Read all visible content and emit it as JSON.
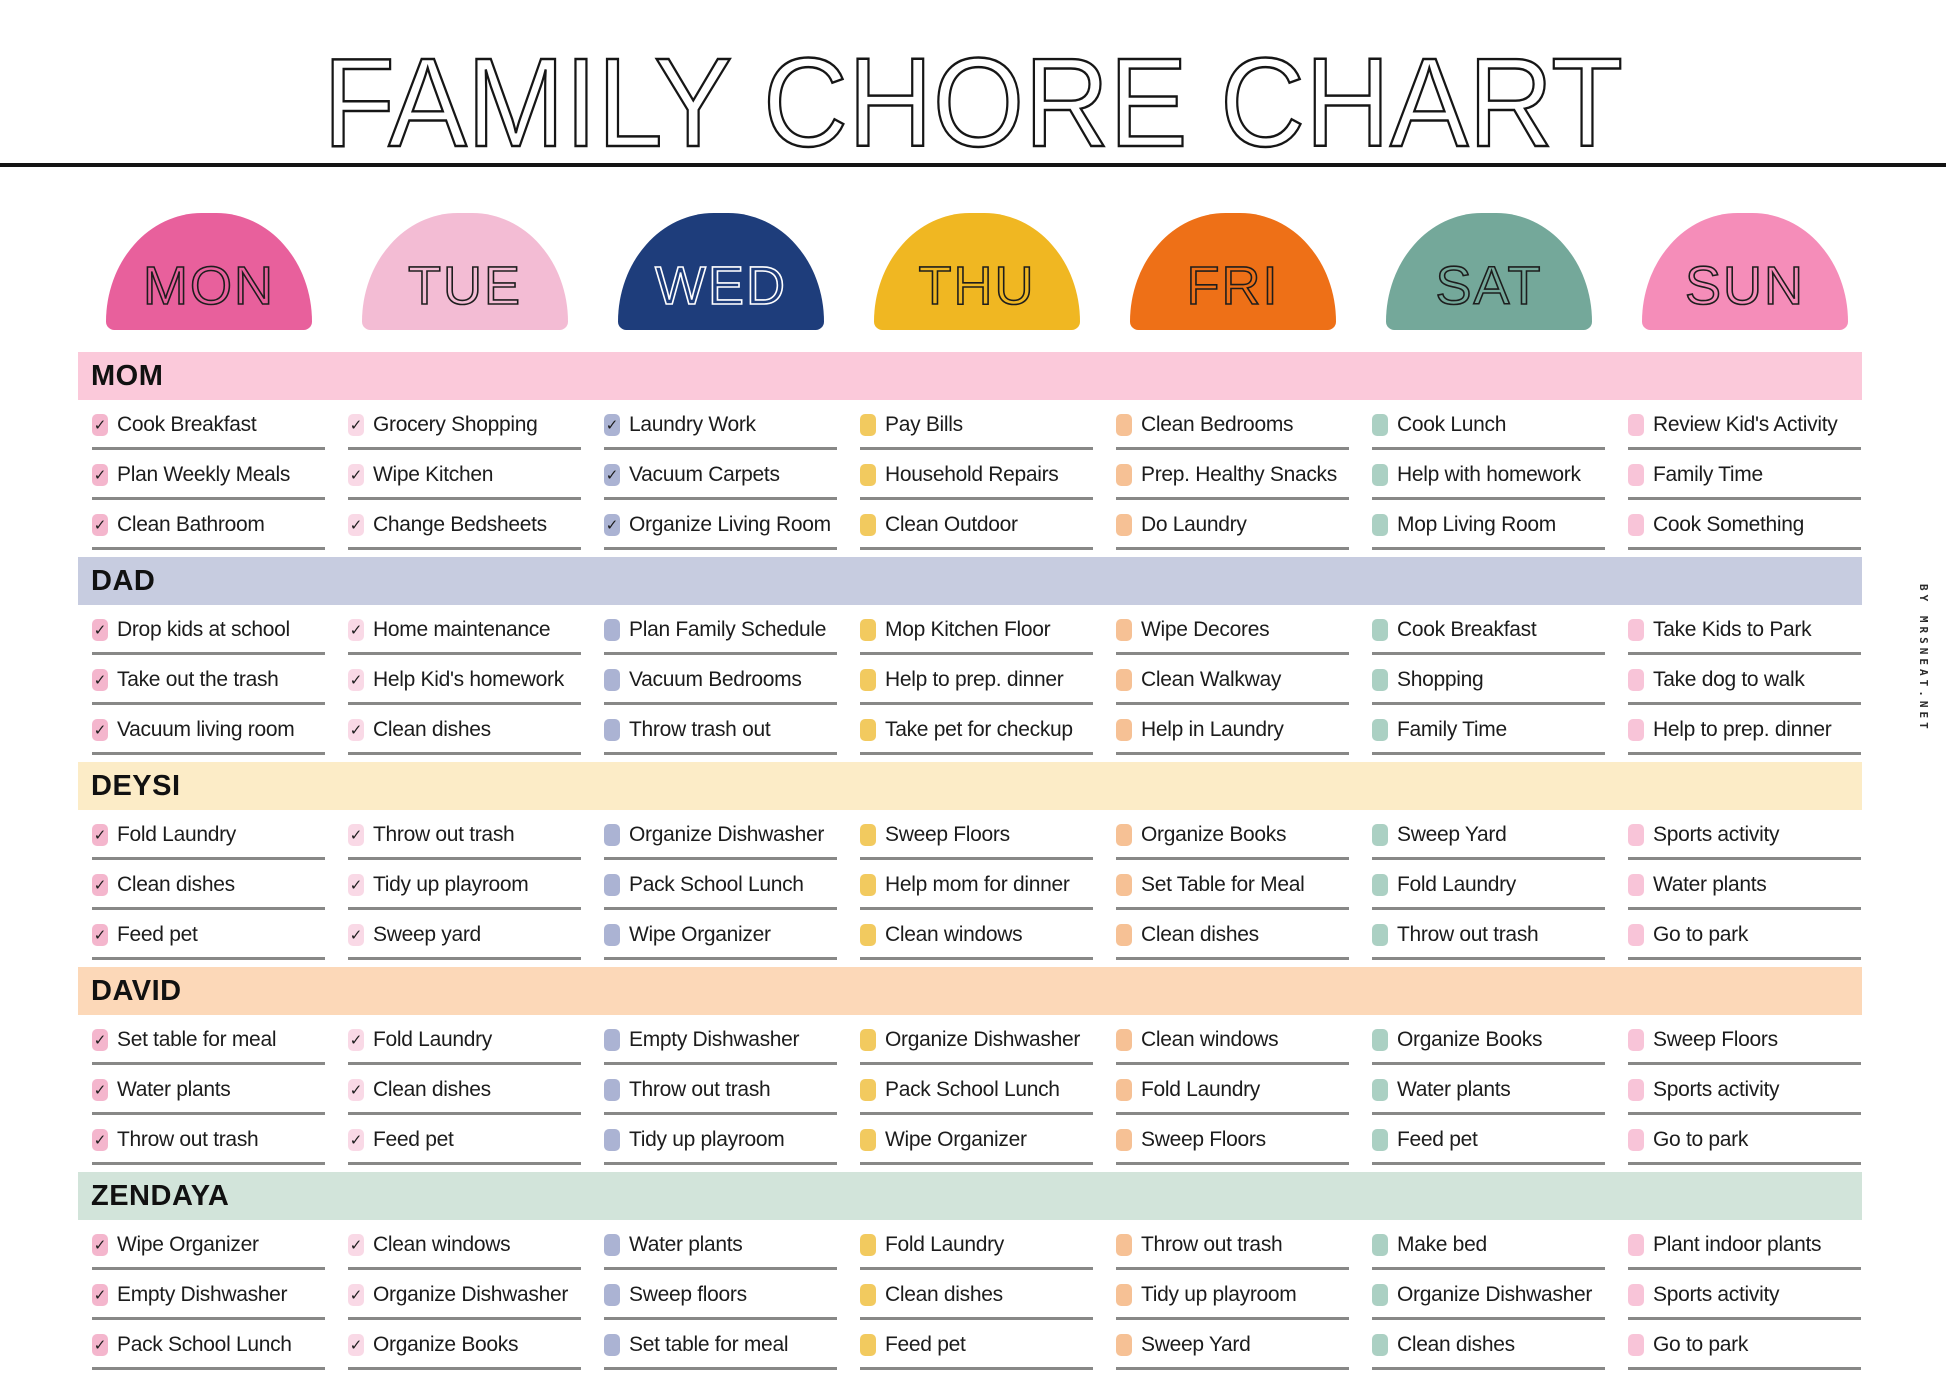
{
  "title": "FAMILY CHORE CHART",
  "credit": "BY MRSNEAT.NET",
  "icons": {
    "checkmark_glyph": "✓"
  },
  "days": [
    {
      "label": "MON",
      "dome_color": "#e8609c",
      "label_color": "#1d1d1d",
      "checkbox_color": "#f4b6cd"
    },
    {
      "label": "TUE",
      "dome_color": "#f3bcd4",
      "label_color": "#1d1d1d",
      "checkbox_color": "#f9d9e6"
    },
    {
      "label": "WED",
      "dome_color": "#1e3d7b",
      "label_color": "#ffffff",
      "checkbox_color": "#abb3d3"
    },
    {
      "label": "THU",
      "dome_color": "#f0b722",
      "label_color": "#1d1d1d",
      "checkbox_color": "#f2ca5f"
    },
    {
      "label": "FRI",
      "dome_color": "#ee7017",
      "label_color": "#1d1d1d",
      "checkbox_color": "#f6c195"
    },
    {
      "label": "SAT",
      "dome_color": "#74a89a",
      "label_color": "#1d1d1d",
      "checkbox_color": "#abd0c3"
    },
    {
      "label": "SUN",
      "dome_color": "#f58db9",
      "label_color": "#1d1d1d",
      "checkbox_color": "#f8c4d8"
    }
  ],
  "members": [
    {
      "name": "MOM",
      "bar_color": "#fbc9da",
      "days": [
        {
          "day": "MON",
          "tasks": [
            "Cook Breakfast",
            "Plan Weekly Meals",
            "Clean Bathroom"
          ],
          "checked": [
            true,
            true,
            true
          ]
        },
        {
          "day": "TUE",
          "tasks": [
            "Grocery Shopping",
            "Wipe Kitchen",
            "Change Bedsheets"
          ],
          "checked": [
            true,
            true,
            true
          ]
        },
        {
          "day": "WED",
          "tasks": [
            "Laundry Work",
            "Vacuum Carpets",
            "Organize Living Room"
          ],
          "checked": [
            true,
            true,
            true
          ]
        },
        {
          "day": "THU",
          "tasks": [
            "Pay Bills",
            "Household Repairs",
            "Clean Outdoor"
          ],
          "checked": [
            false,
            false,
            false
          ]
        },
        {
          "day": "FRI",
          "tasks": [
            "Clean Bedrooms",
            "Prep. Healthy Snacks",
            "Do Laundry"
          ],
          "checked": [
            false,
            false,
            false
          ]
        },
        {
          "day": "SAT",
          "tasks": [
            "Cook Lunch",
            "Help with homework",
            "Mop Living Room"
          ],
          "checked": [
            false,
            false,
            false
          ]
        },
        {
          "day": "SUN",
          "tasks": [
            "Review Kid's Activity",
            "Family Time",
            "Cook Something"
          ],
          "checked": [
            false,
            false,
            false
          ]
        }
      ]
    },
    {
      "name": "DAD",
      "bar_color": "#c7cce0",
      "days": [
        {
          "day": "MON",
          "tasks": [
            "Drop kids at school",
            "Take out the trash",
            "Vacuum living room"
          ],
          "checked": [
            true,
            true,
            true
          ]
        },
        {
          "day": "TUE",
          "tasks": [
            "Home maintenance",
            "Help Kid's homework",
            "Clean dishes"
          ],
          "checked": [
            true,
            true,
            true
          ]
        },
        {
          "day": "WED",
          "tasks": [
            "Plan Family Schedule",
            "Vacuum Bedrooms",
            "Throw trash out"
          ],
          "checked": [
            false,
            false,
            false
          ]
        },
        {
          "day": "THU",
          "tasks": [
            "Mop Kitchen Floor",
            "Help to prep. dinner",
            "Take pet for checkup"
          ],
          "checked": [
            false,
            false,
            false
          ]
        },
        {
          "day": "FRI",
          "tasks": [
            "Wipe Decores",
            "Clean Walkway",
            "Help in Laundry"
          ],
          "checked": [
            false,
            false,
            false
          ]
        },
        {
          "day": "SAT",
          "tasks": [
            "Cook Breakfast",
            "Shopping",
            "Family Time"
          ],
          "checked": [
            false,
            false,
            false
          ]
        },
        {
          "day": "SUN",
          "tasks": [
            "Take Kids to Park",
            "Take dog to walk",
            "Help to prep. dinner"
          ],
          "checked": [
            false,
            false,
            false
          ]
        }
      ]
    },
    {
      "name": "DEYSI",
      "bar_color": "#fcecc7",
      "days": [
        {
          "day": "MON",
          "tasks": [
            "Fold Laundry",
            "Clean dishes",
            "Feed pet"
          ],
          "checked": [
            true,
            true,
            true
          ]
        },
        {
          "day": "TUE",
          "tasks": [
            "Throw out trash",
            "Tidy up playroom",
            "Sweep yard"
          ],
          "checked": [
            true,
            true,
            true
          ]
        },
        {
          "day": "WED",
          "tasks": [
            "Organize Dishwasher",
            "Pack School Lunch",
            "Wipe Organizer"
          ],
          "checked": [
            false,
            false,
            false
          ]
        },
        {
          "day": "THU",
          "tasks": [
            "Sweep Floors",
            "Help mom for dinner",
            "Clean windows"
          ],
          "checked": [
            false,
            false,
            false
          ]
        },
        {
          "day": "FRI",
          "tasks": [
            "Organize Books",
            "Set Table for Meal",
            "Clean dishes"
          ],
          "checked": [
            false,
            false,
            false
          ]
        },
        {
          "day": "SAT",
          "tasks": [
            "Sweep Yard",
            "Fold Laundry",
            "Throw out trash"
          ],
          "checked": [
            false,
            false,
            false
          ]
        },
        {
          "day": "SUN",
          "tasks": [
            "Sports activity",
            "Water plants",
            "Go to park"
          ],
          "checked": [
            false,
            false,
            false
          ]
        }
      ]
    },
    {
      "name": "DAVID",
      "bar_color": "#fcd8b8",
      "days": [
        {
          "day": "MON",
          "tasks": [
            "Set table for meal",
            "Water plants",
            "Throw out trash"
          ],
          "checked": [
            true,
            true,
            true
          ]
        },
        {
          "day": "TUE",
          "tasks": [
            "Fold Laundry",
            "Clean dishes",
            "Feed pet"
          ],
          "checked": [
            true,
            true,
            true
          ]
        },
        {
          "day": "WED",
          "tasks": [
            "Empty Dishwasher",
            "Throw out trash",
            "Tidy up playroom"
          ],
          "checked": [
            false,
            false,
            false
          ]
        },
        {
          "day": "THU",
          "tasks": [
            "Organize Dishwasher",
            "Pack School Lunch",
            "Wipe Organizer"
          ],
          "checked": [
            false,
            false,
            false
          ]
        },
        {
          "day": "FRI",
          "tasks": [
            "Clean windows",
            "Fold Laundry",
            "Sweep Floors"
          ],
          "checked": [
            false,
            false,
            false
          ]
        },
        {
          "day": "SAT",
          "tasks": [
            "Organize Books",
            "Water plants",
            "Feed pet"
          ],
          "checked": [
            false,
            false,
            false
          ]
        },
        {
          "day": "SUN",
          "tasks": [
            "Sweep Floors",
            "Sports activity",
            "Go to park"
          ],
          "checked": [
            false,
            false,
            false
          ]
        }
      ]
    },
    {
      "name": "ZENDAYA",
      "bar_color": "#d2e4da",
      "days": [
        {
          "day": "MON",
          "tasks": [
            "Wipe Organizer",
            "Empty Dishwasher",
            "Pack School Lunch"
          ],
          "checked": [
            true,
            true,
            true
          ]
        },
        {
          "day": "TUE",
          "tasks": [
            "Clean windows",
            "Organize Dishwasher",
            "Organize Books"
          ],
          "checked": [
            true,
            true,
            true
          ]
        },
        {
          "day": "WED",
          "tasks": [
            "Water plants",
            "Sweep floors",
            "Set table for meal"
          ],
          "checked": [
            false,
            false,
            false
          ]
        },
        {
          "day": "THU",
          "tasks": [
            "Fold Laundry",
            "Clean dishes",
            "Feed pet"
          ],
          "checked": [
            false,
            false,
            false
          ]
        },
        {
          "day": "FRI",
          "tasks": [
            "Throw out trash",
            "Tidy up playroom",
            "Sweep Yard"
          ],
          "checked": [
            false,
            false,
            false
          ]
        },
        {
          "day": "SAT",
          "tasks": [
            "Make bed",
            "Organize Dishwasher",
            "Clean dishes"
          ],
          "checked": [
            false,
            false,
            false
          ]
        },
        {
          "day": "SUN",
          "tasks": [
            "Plant indoor plants",
            "Sports activity",
            "Go to park"
          ],
          "checked": [
            false,
            false,
            false
          ]
        }
      ]
    }
  ]
}
